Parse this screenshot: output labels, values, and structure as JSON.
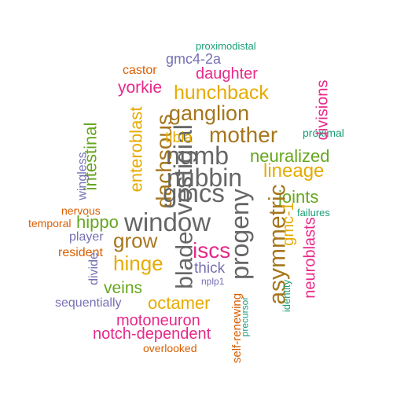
{
  "colors": {
    "teal": "#1b9e77",
    "orange": "#d95f02",
    "purple": "#7570b3",
    "magenta": "#e7298a",
    "green": "#66a61e",
    "gold": "#e6ab02",
    "brown": "#a6761d",
    "gray": "#666666"
  },
  "words": [
    {
      "text": "proximodistal",
      "color": "teal"
    },
    {
      "text": "gmc4-2a",
      "color": "purple"
    },
    {
      "text": "castor",
      "color": "orange"
    },
    {
      "text": "daughter",
      "color": "magenta"
    },
    {
      "text": "yorkie",
      "color": "magenta"
    },
    {
      "text": "hunchback",
      "color": "gold"
    },
    {
      "text": "ganglion",
      "color": "brown"
    },
    {
      "text": "divisions",
      "color": "magenta"
    },
    {
      "text": "proximal",
      "color": "teal"
    },
    {
      "text": "enteroblast",
      "color": "gold"
    },
    {
      "text": "dachsous",
      "color": "brown"
    },
    {
      "text": "vestigial",
      "color": "gray"
    },
    {
      "text": "mother",
      "color": "brown"
    },
    {
      "text": "tibia",
      "color": "gold"
    },
    {
      "text": "numb",
      "color": "gray"
    },
    {
      "text": "neuralized",
      "color": "green"
    },
    {
      "text": "intestinal",
      "color": "green"
    },
    {
      "text": "wingless",
      "color": "purple"
    },
    {
      "text": "nubbin",
      "color": "gray"
    },
    {
      "text": "lineage",
      "color": "gold"
    },
    {
      "text": "gmcs",
      "color": "gray"
    },
    {
      "text": "joints",
      "color": "green"
    },
    {
      "text": "nervous",
      "color": "orange"
    },
    {
      "text": "temporal",
      "color": "orange"
    },
    {
      "text": "hippo",
      "color": "green"
    },
    {
      "text": "window",
      "color": "gray"
    },
    {
      "text": "progeny",
      "color": "gray"
    },
    {
      "text": "asymmetric",
      "color": "brown"
    },
    {
      "text": "gmc-1",
      "color": "gold"
    },
    {
      "text": "failures",
      "color": "teal"
    },
    {
      "text": "player",
      "color": "purple"
    },
    {
      "text": "grow",
      "color": "brown"
    },
    {
      "text": "resident",
      "color": "orange"
    },
    {
      "text": "blade",
      "color": "gray"
    },
    {
      "text": "iscs",
      "color": "magenta"
    },
    {
      "text": "neuroblasts",
      "color": "magenta"
    },
    {
      "text": "hinge",
      "color": "gold"
    },
    {
      "text": "divide",
      "color": "purple"
    },
    {
      "text": "thick",
      "color": "purple"
    },
    {
      "text": "nplp1",
      "color": "purple"
    },
    {
      "text": "veins",
      "color": "green"
    },
    {
      "text": "sequentially",
      "color": "purple"
    },
    {
      "text": "octamer",
      "color": "gold"
    },
    {
      "text": "identity",
      "color": "teal"
    },
    {
      "text": "self-renewing",
      "color": "orange"
    },
    {
      "text": "precursor",
      "color": "teal"
    },
    {
      "text": "motoneuron",
      "color": "magenta"
    },
    {
      "text": "notch-dependent",
      "color": "magenta"
    },
    {
      "text": "overlooked",
      "color": "orange"
    }
  ]
}
